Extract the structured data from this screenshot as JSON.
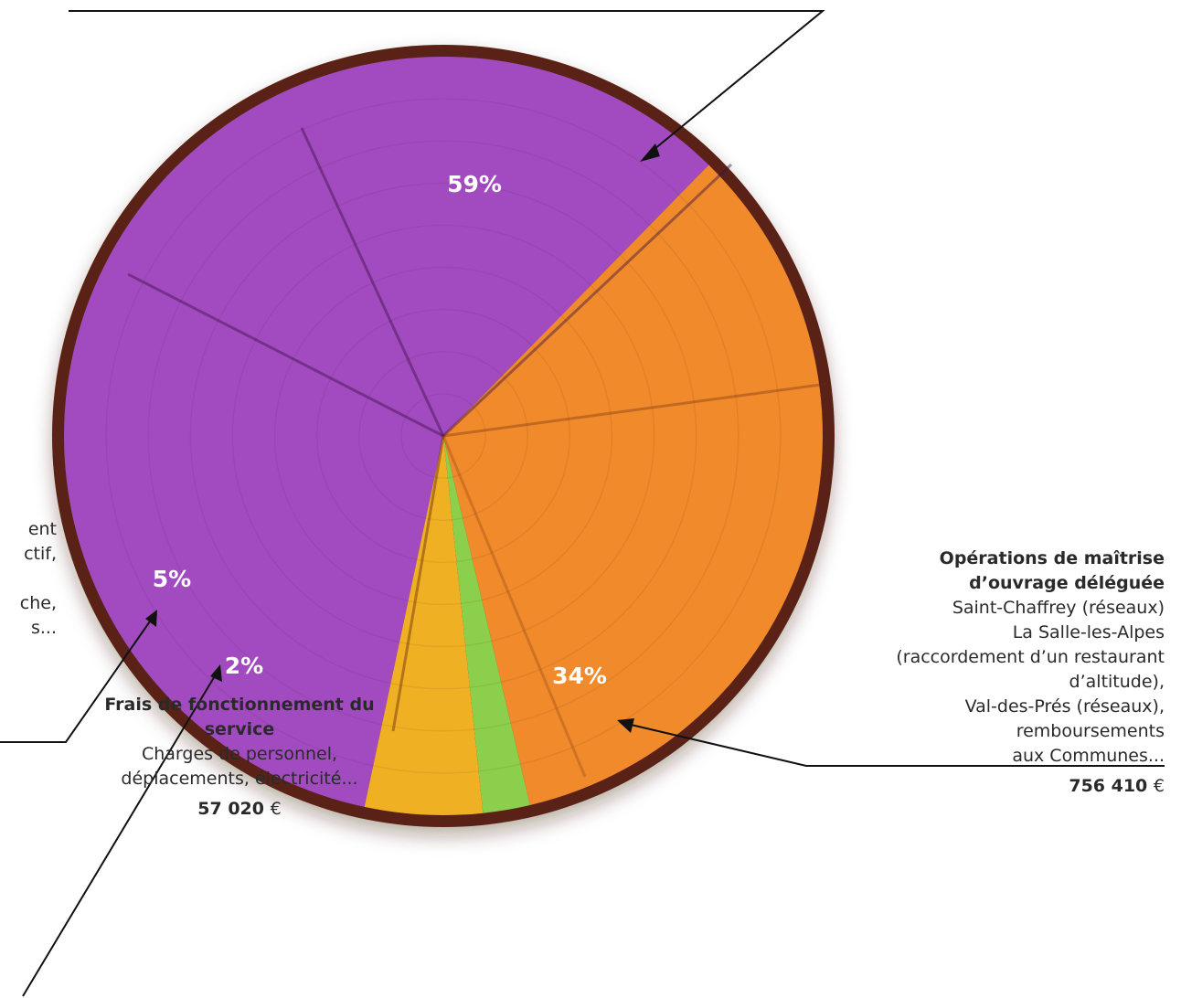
{
  "chart_data": {
    "type": "pie",
    "slices": [
      {
        "label": "",
        "value": 59,
        "label_text": "59%",
        "color": "#a24bc0"
      },
      {
        "label": "Opérations de maîtrise d’ouvrage déléguée",
        "value": 34,
        "label_text": "34%",
        "color": "#f08a2a"
      },
      {
        "label": "Frais de fonctionnement du service",
        "value": 2,
        "label_text": "2%",
        "color": "#8ccf4c"
      },
      {
        "label": "",
        "value": 5,
        "label_text": "5%",
        "color": "#efb024"
      }
    ]
  },
  "annotations": {
    "mod": {
      "title_line1": "Opérations de maîtrise",
      "title_line2": "d’ouvrage déléguée",
      "lines": [
        "Saint-Chaffrey (réseaux)",
        "La Salle-les-Alpes",
        "(raccordement d’un restaurant",
        "d’altitude),",
        "Val-des-Prés (réseaux),",
        "remboursements",
        "aux Communes..."
      ],
      "amount": "756 410",
      "currency": "€"
    },
    "frais": {
      "title": "Frais de fonctionnement du service",
      "line1": "Charges de personnel,",
      "line2": "déplacements, électricité...",
      "amount": "57 020",
      "currency": "€"
    },
    "left_fragment": {
      "line1": "ent",
      "line2": "ctif,",
      "line3": "che,",
      "line4": "s..."
    }
  }
}
